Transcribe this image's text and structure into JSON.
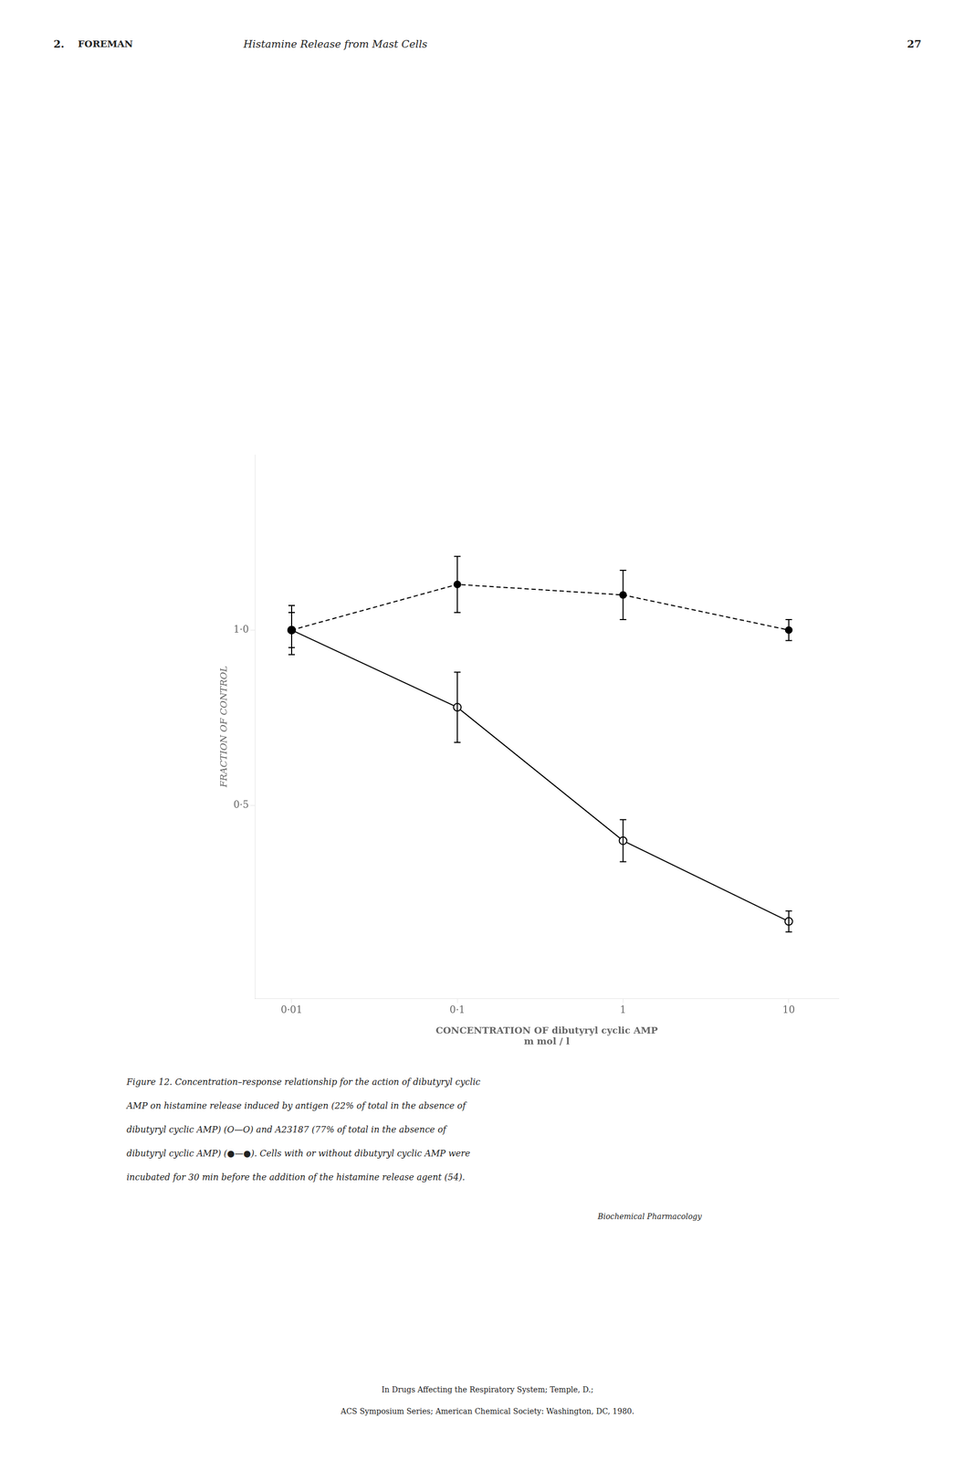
{
  "chart_data": {
    "type": "line",
    "x": [
      0.01,
      0.1,
      1.0,
      10.0
    ],
    "series": [
      {
        "color": "#000000",
        "marker": "circle",
        "line_style": "dashed",
        "values": [
          1.0,
          1.13,
          1.1,
          1.0
        ],
        "yerr": [
          0.05,
          0.08,
          0.07,
          0.03
        ]
      },
      {
        "color": "#000000",
        "marker": "open_circle",
        "line_style": "solid",
        "values": [
          1.0,
          0.78,
          0.4,
          0.17
        ],
        "yerr": [
          0.07,
          0.1,
          0.06,
          0.03
        ]
      }
    ],
    "log": "x",
    "xlim": [
      0.006,
      20
    ],
    "xticks": [
      {
        "value": 0.01,
        "label": "0·01"
      },
      {
        "value": 0.1,
        "label": "0·1"
      },
      1,
      10
    ],
    "ylim": [
      -0.05,
      1.5
    ],
    "yticks": [
      {
        "value": 0.5,
        "label": "0·5"
      },
      {
        "value": 1.0,
        "label": "1·0"
      }
    ],
    "xlabel": [
      "CONCENTRATION OF dibutyryl cyclic AMP",
      "m mol / l"
    ],
    "ylabel": "FRACTION OF CONTROL",
    "grid": false,
    "annotations": {
      "header": [
        "2.",
        "FOREMAN",
        "Histamine Release from Mast Cells",
        "27"
      ],
      "caption": [
        "Figure 12.   Concentration–response relationship for the action of dibutyryl cyclic",
        "AMP on histamine release induced by antigen (22% of total in the absence of",
        "dibutyryl cyclic AMP) (O—O) and A23187 (77% of total in the absence of",
        "dibutyryl cyclic AMP) (●—●). Cells with or without dibutyryl cyclic AMP were",
        "incubated for 30 min before the addition of the histamine release agent (54)."
      ],
      "footer": [
        "Biochemical Pharmacology",
        "In Drugs Affecting the Respiratory System; Temple, D.;",
        "ACS Symposium Series; American Chemical Society: Washington, DC, 1980."
      ]
    }
  }
}
